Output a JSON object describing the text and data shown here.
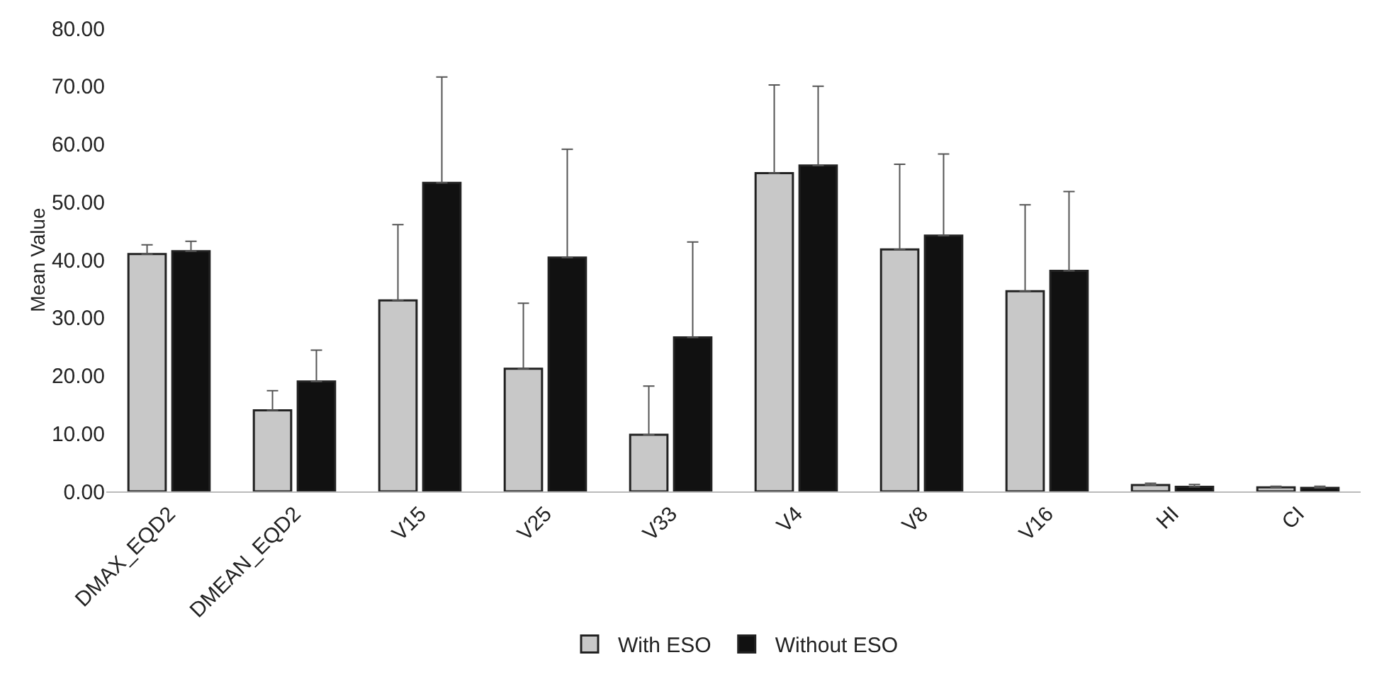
{
  "chart_data": {
    "type": "bar",
    "ylabel": "Mean Value",
    "categories": [
      "DMAX_EQD2",
      "DMEAN_EQD2",
      "V15",
      "V25",
      "V33",
      "V4",
      "V8",
      "V16",
      "HI",
      "CI"
    ],
    "series": [
      {
        "name": "With ESO",
        "color": "#c8c8c8",
        "values": [
          41,
          14,
          33,
          21.2,
          9.8,
          55,
          41.8,
          34.6,
          1.1,
          0.7
        ],
        "errors": [
          [
            41,
            42.6
          ],
          [
            14,
            17.4
          ],
          [
            33,
            46.1
          ],
          [
            21.2,
            32.5
          ],
          [
            9.8,
            18.2
          ],
          [
            55,
            70.2
          ],
          [
            41.8,
            56.5
          ],
          [
            34.6,
            49.5
          ],
          [
            1.1,
            1.4
          ],
          [
            0.7,
            0.9
          ]
        ]
      },
      {
        "name": "Without ESO",
        "color": "#111111",
        "values": [
          41.5,
          19,
          53.3,
          40.4,
          26.6,
          56.3,
          44.2,
          38.1,
          0.8,
          0.6
        ],
        "errors": [
          [
            41.5,
            43.2
          ],
          [
            19,
            24.4
          ],
          [
            53.3,
            71.6
          ],
          [
            40.4,
            59.1
          ],
          [
            26.6,
            43.1
          ],
          [
            56.3,
            70
          ],
          [
            44.2,
            58.3
          ],
          [
            38.1,
            51.8
          ],
          [
            0.8,
            1.2
          ],
          [
            0.6,
            0.9
          ]
        ]
      }
    ],
    "ylim": [
      0,
      80
    ],
    "yticks": [
      {
        "value": 0,
        "label": "0.00"
      },
      {
        "value": 10,
        "label": "10.00"
      },
      {
        "value": 20,
        "label": "20.00"
      },
      {
        "value": 30,
        "label": "30.00"
      },
      {
        "value": 40,
        "label": "40.00"
      },
      {
        "value": 50,
        "label": "50.00"
      },
      {
        "value": 60,
        "label": "60.00"
      },
      {
        "value": 70,
        "label": "70.00"
      },
      {
        "value": 80,
        "label": "80.00"
      }
    ],
    "grid": false,
    "legend": "bottom"
  }
}
